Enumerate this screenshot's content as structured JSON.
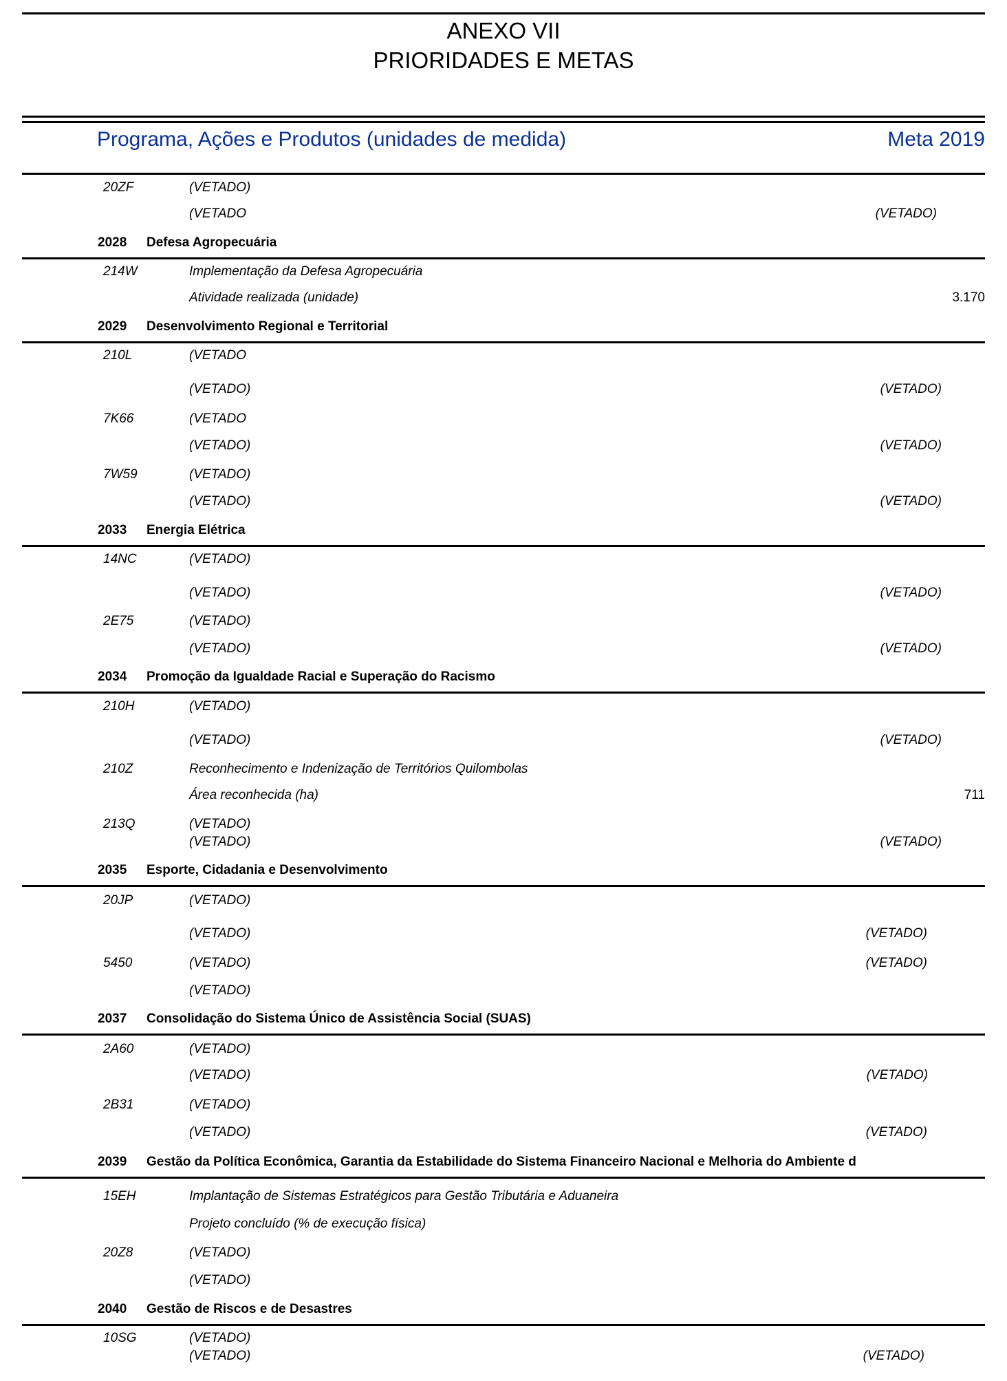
{
  "document": {
    "annex": "ANEXO VII",
    "title": "PRIORIDADES E METAS",
    "header_left": "Programa, Ações e Produtos (unidades de medida)",
    "header_right": "Meta 2019"
  },
  "leading_actions": [
    {
      "code": "20ZF",
      "title": "(VETADO)",
      "products": [
        {
          "label": "(VETADO",
          "meta": "(VETADO)"
        }
      ]
    }
  ],
  "programs": [
    {
      "code": "2028",
      "name": "Defesa Agropecuária",
      "actions": [
        {
          "code": "214W",
          "title": "Implementação da Defesa Agropecuária",
          "products": [
            {
              "label": "Atividade realizada (unidade)",
              "meta": "3.170"
            }
          ]
        }
      ]
    },
    {
      "code": "2029",
      "name": "Desenvolvimento Regional e Territorial",
      "actions": [
        {
          "code": "210L",
          "title": "(VETADO",
          "products": [
            {
              "label": "(VETADO)",
              "meta": "(VETADO)"
            }
          ]
        },
        {
          "code": "7K66",
          "title": "(VETADO",
          "products": [
            {
              "label": "(VETADO)",
              "meta": "(VETADO)"
            }
          ]
        },
        {
          "code": "7W59",
          "title": "(VETADO)",
          "products": [
            {
              "label": "(VETADO)",
              "meta": "(VETADO)"
            }
          ]
        }
      ]
    },
    {
      "code": "2033",
      "name": "Energia Elétrica",
      "actions": [
        {
          "code": "14NC",
          "title": "(VETADO)",
          "products": [
            {
              "label": "(VETADO)",
              "meta": "(VETADO)"
            }
          ]
        },
        {
          "code": "2E75",
          "title": "(VETADO)",
          "products": [
            {
              "label": "(VETADO)",
              "meta": "(VETADO)"
            }
          ]
        }
      ]
    },
    {
      "code": "2034",
      "name": "Promoção da Igualdade Racial e Superação do Racismo",
      "actions": [
        {
          "code": "210H",
          "title": "(VETADO)",
          "products": [
            {
              "label": "(VETADO)",
              "meta": "(VETADO)"
            }
          ]
        },
        {
          "code": "210Z",
          "title": "Reconhecimento e Indenização de Territórios Quilombolas",
          "products": [
            {
              "label": "Área reconhecida (ha)",
              "meta": "711"
            }
          ]
        },
        {
          "code": "213Q",
          "title": "(VETADO)",
          "products": [
            {
              "label": "(VETADO)",
              "meta": "(VETADO)"
            }
          ]
        }
      ]
    },
    {
      "code": "2035",
      "name": "Esporte, Cidadania e Desenvolvimento",
      "actions": [
        {
          "code": "20JP",
          "title": "(VETADO)",
          "products": [
            {
              "label": "(VETADO)",
              "meta": "(VETADO)"
            }
          ]
        },
        {
          "code": "5450",
          "title": "(VETADO)",
          "title_meta": "(VETADO)",
          "products": [
            {
              "label": "(VETADO)"
            }
          ]
        }
      ]
    },
    {
      "code": "2037",
      "name": "Consolidação do Sistema Único de Assistência Social (SUAS)",
      "actions": [
        {
          "code": "2A60",
          "title": "(VETADO)",
          "products": [
            {
              "label": "(VETADO)",
              "meta": "(VETADO)"
            }
          ]
        },
        {
          "code": "2B31",
          "title": "(VETADO)",
          "products": [
            {
              "label": "(VETADO)",
              "meta": "(VETADO)"
            }
          ]
        }
      ]
    },
    {
      "code": "2039",
      "name": "Gestão da Política Econômica, Garantia da Estabilidade do Sistema Financeiro Nacional e Melhoria do Ambiente d",
      "actions": [
        {
          "code": "15EH",
          "title": "Implantação de Sistemas Estratégicos para Gestão Tributária e Aduaneira",
          "products": [
            {
              "label": "Projeto concluído (% de execução física)"
            }
          ]
        },
        {
          "code": "20Z8",
          "title": "(VETADO)",
          "products": [
            {
              "label": "(VETADO)"
            }
          ]
        }
      ]
    },
    {
      "code": "2040",
      "name": "Gestão de Riscos e de Desastres",
      "actions": [
        {
          "code": "10SG",
          "title": "(VETADO)",
          "products": [
            {
              "label": "(VETADO)",
              "meta": "(VETADO)"
            }
          ]
        }
      ]
    }
  ]
}
